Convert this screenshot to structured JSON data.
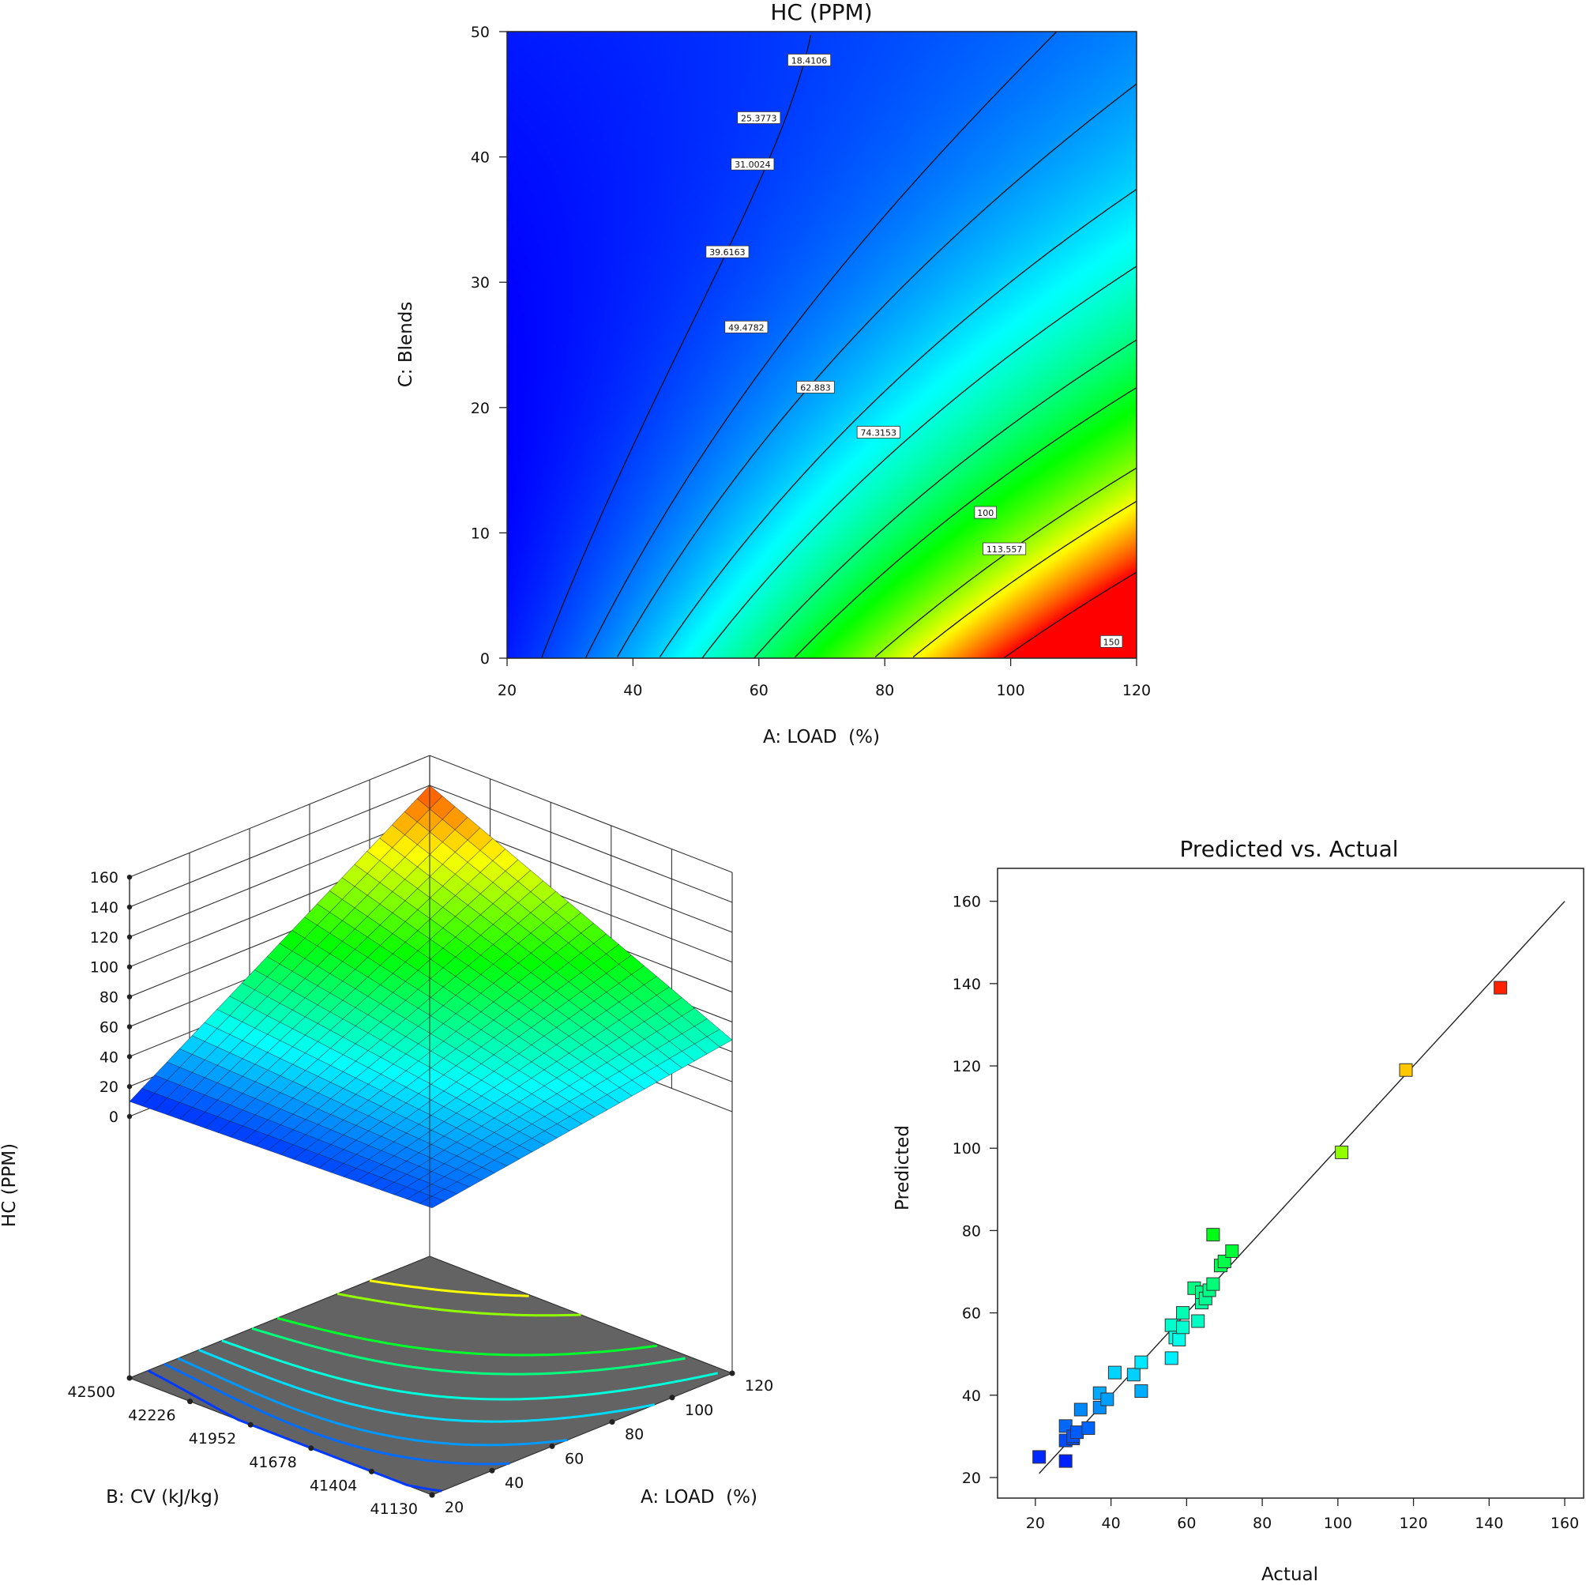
{
  "chart_data": [
    {
      "type": "contour",
      "title": "HC (PPM)",
      "xlabel": "A: LOAD  (%)",
      "ylabel": "C: Blends",
      "xlim": [
        20,
        120
      ],
      "ylim": [
        0,
        50
      ],
      "xticks": [
        "20",
        "40",
        "60",
        "80",
        "100",
        "120"
      ],
      "yticks": [
        "0",
        "10",
        "20",
        "30",
        "40",
        "50"
      ],
      "contour_levels": [
        {
          "value": 18.4106,
          "label": "18.4106",
          "label_at": [
            68,
            47.7
          ]
        },
        {
          "value": 25.3773,
          "label": "25.3773",
          "label_at": [
            60,
            43.1
          ]
        },
        {
          "value": 31.0024,
          "label": "31.0024",
          "label_at": [
            59,
            39.4
          ]
        },
        {
          "value": 39.6163,
          "label": "39.6163",
          "label_at": [
            55,
            32.4
          ]
        },
        {
          "value": 49.4782,
          "label": "49.4782",
          "label_at": [
            58,
            26.4
          ]
        },
        {
          "value": 62.883,
          "label": "62.883",
          "label_at": [
            69,
            21.6
          ]
        },
        {
          "value": 74.3153,
          "label": "74.3153",
          "label_at": [
            79,
            18.0
          ]
        },
        {
          "value": 100,
          "label": "100",
          "label_at": [
            96,
            11.6
          ]
        },
        {
          "value": 113.557,
          "label": "113.557",
          "label_at": [
            99,
            8.7
          ]
        },
        {
          "value": 150,
          "label": "150",
          "label_at": [
            116,
            1.3
          ]
        }
      ]
    },
    {
      "type": "surface3d",
      "zlabel": "HC (PPM)",
      "xlabel": "A: LOAD  (%)",
      "ylabel": "B: CV (kJ/kg)",
      "x_ticks": [
        "20",
        "40",
        "60",
        "80",
        "100",
        "120"
      ],
      "y_ticks": [
        "41130",
        "41404",
        "41678",
        "41952",
        "42226",
        "42500"
      ],
      "z_ticks": [
        "0",
        "20",
        "40",
        "60",
        "80",
        "100",
        "120",
        "140",
        "160"
      ],
      "xlim": [
        20,
        120
      ],
      "ylim": [
        41130,
        42500
      ],
      "zlim": [
        0,
        160
      ],
      "z_corners": {
        "low_load_high_cv": 10,
        "low_load_low_cv": 17,
        "high_load_high_cv": 140,
        "high_load_low_cv": 48
      }
    },
    {
      "type": "scatter",
      "title": "Predicted vs. Actual",
      "xlabel": "Actual",
      "ylabel": "Predicted",
      "xlim": [
        10,
        165
      ],
      "ylim": [
        15,
        168
      ],
      "xticks": [
        "20",
        "40",
        "60",
        "80",
        "100",
        "120",
        "140",
        "160"
      ],
      "yticks": [
        "20",
        "40",
        "60",
        "80",
        "100",
        "120",
        "140",
        "160"
      ],
      "reference_line": [
        [
          21,
          21
        ],
        [
          160,
          160
        ]
      ],
      "points": [
        [
          21,
          25
        ],
        [
          28,
          24
        ],
        [
          28,
          29
        ],
        [
          28,
          32.5
        ],
        [
          30,
          29.5
        ],
        [
          30,
          30
        ],
        [
          31,
          31
        ],
        [
          32,
          36.5
        ],
        [
          34,
          32
        ],
        [
          37,
          37
        ],
        [
          37,
          40.5
        ],
        [
          39,
          39
        ],
        [
          41,
          45.5
        ],
        [
          46,
          45
        ],
        [
          48,
          48
        ],
        [
          48,
          41
        ],
        [
          56,
          57
        ],
        [
          56,
          49
        ],
        [
          57,
          54
        ],
        [
          58,
          53.5
        ],
        [
          59,
          56.5
        ],
        [
          59,
          60
        ],
        [
          62,
          66
        ],
        [
          63,
          58
        ],
        [
          64,
          62.5
        ],
        [
          64,
          65
        ],
        [
          65,
          63.5
        ],
        [
          66,
          65.5
        ],
        [
          67,
          67
        ],
        [
          67,
          79
        ],
        [
          69,
          71.5
        ],
        [
          70,
          72.5
        ],
        [
          72,
          75
        ],
        [
          101,
          99
        ],
        [
          118,
          119
        ],
        [
          143,
          139
        ]
      ]
    }
  ]
}
